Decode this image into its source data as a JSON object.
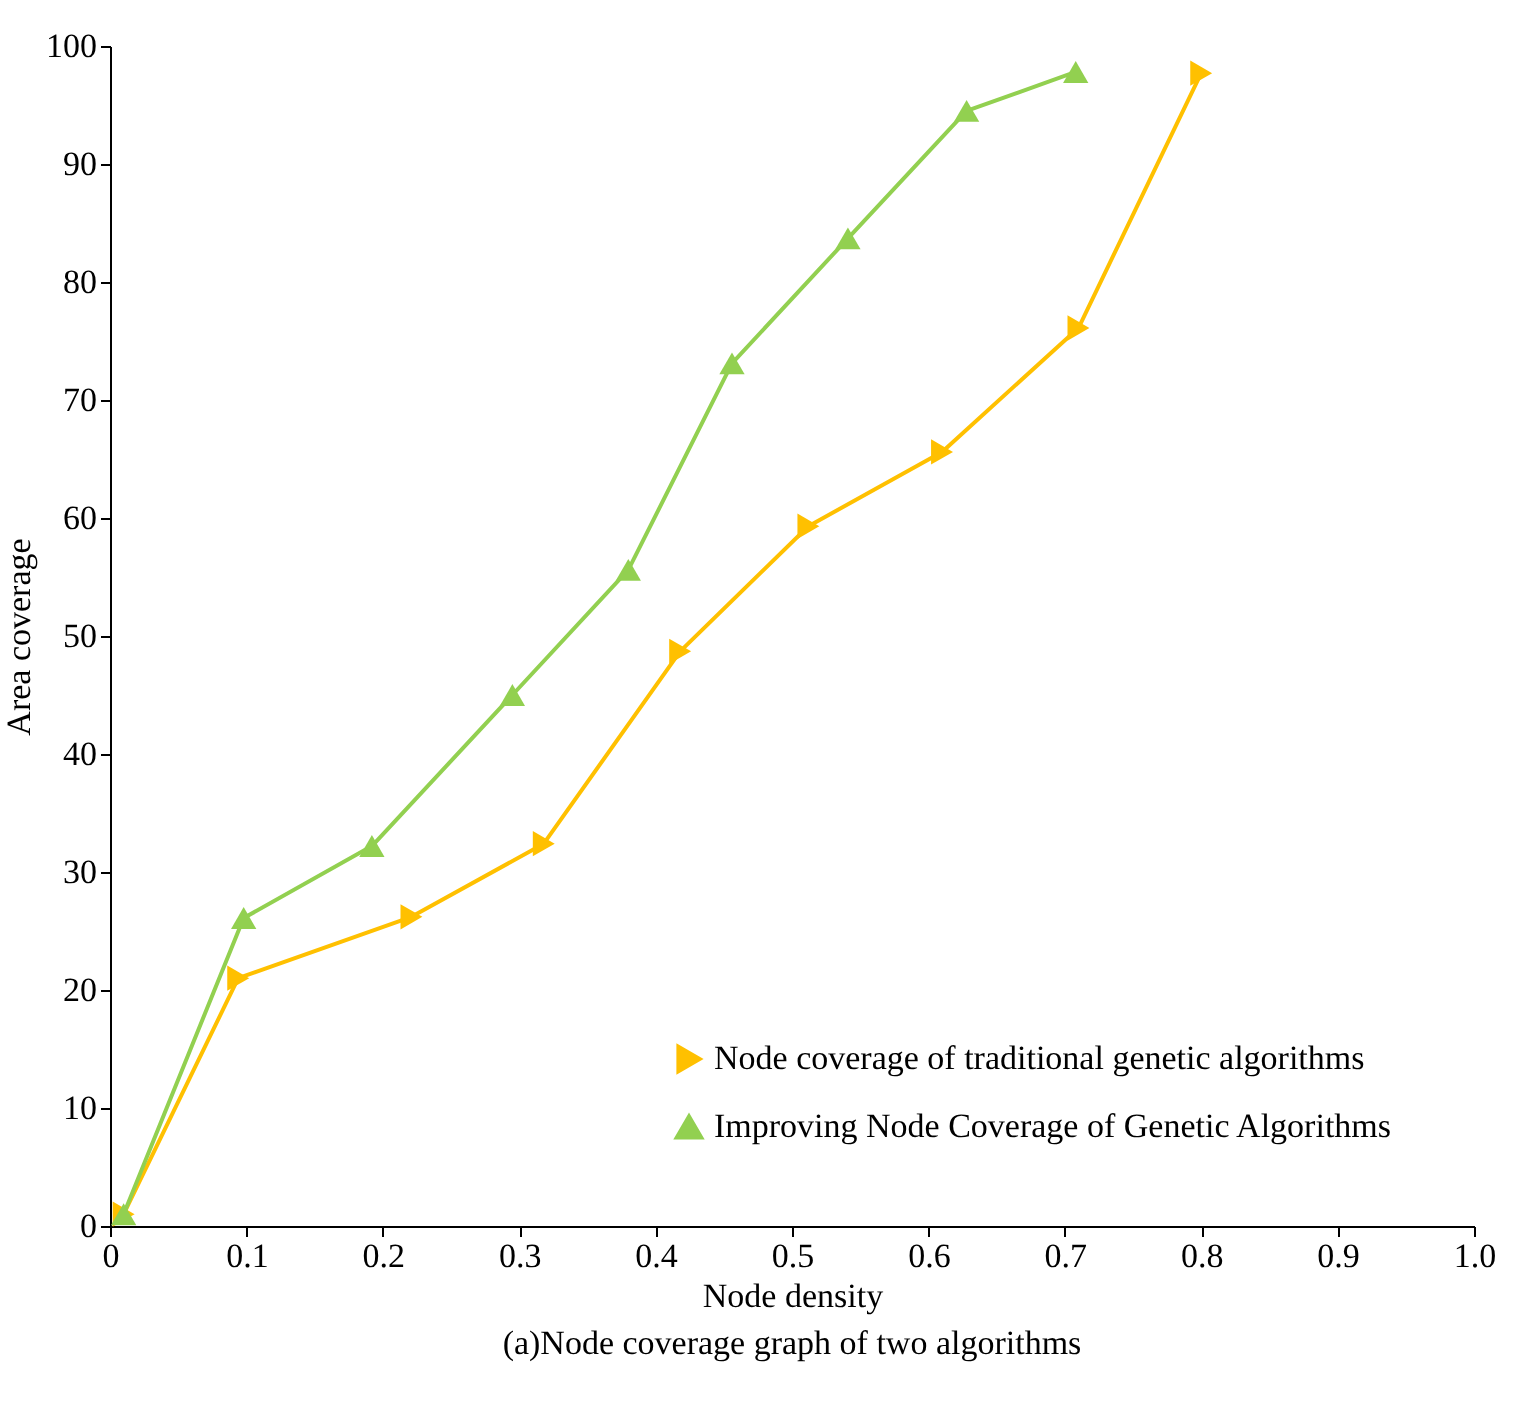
{
  "chart_data": {
    "type": "line",
    "xlabel": "Node density",
    "ylabel": "Area coverage",
    "annotations": [
      "(a)Node coverage graph of two algorithms"
    ],
    "xlim": [
      0,
      1.0
    ],
    "xticks": [
      0,
      0.1,
      0.2,
      0.3,
      0.4,
      0.5,
      0.6,
      0.7,
      0.8,
      0.9,
      {
        "value": 1.0,
        "label": "1.0"
      }
    ],
    "ylim": [
      0,
      100
    ],
    "yticks": [
      0,
      10,
      20,
      30,
      40,
      50,
      60,
      70,
      80,
      90,
      100
    ],
    "grid": false,
    "legend": "bottom right",
    "line_style": "solid",
    "series": [
      {
        "name": "Node coverage of traditional genetic algorithms",
        "color": "#ffc000",
        "marker": "triangle-right",
        "x": [
          0.01,
          0.094,
          0.221,
          0.318,
          0.418,
          0.512,
          0.61,
          0.71,
          0.8
        ],
        "values": [
          1,
          21,
          26.2,
          32.4,
          48.7,
          59.3,
          65.6,
          76.1,
          97.7
        ]
      },
      {
        "name": "Improving Node Coverage of Genetic Algorithms",
        "color": "#92d050",
        "marker": "triangle",
        "x": [
          0.01,
          0.098,
          0.192,
          0.295,
          0.38,
          0.456,
          0.541,
          0.628,
          0.708
        ],
        "values": [
          1,
          26.1,
          32.2,
          45,
          55.6,
          73.1,
          83.7,
          94.5,
          97.8
        ]
      }
    ]
  }
}
